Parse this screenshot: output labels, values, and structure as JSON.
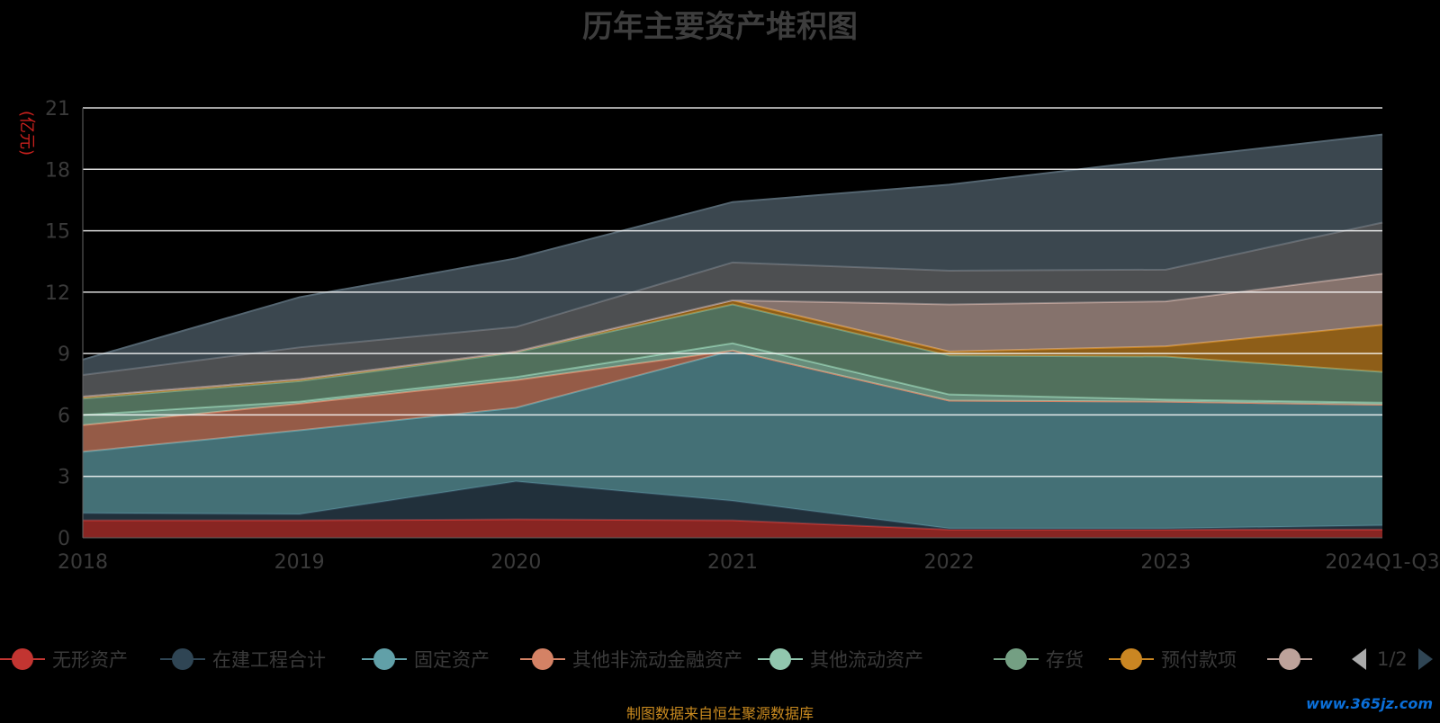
{
  "title": "历年主要资产堆积图",
  "footer_text": "制图数据来自恒生聚源数据库",
  "watermark": "www.365jz.com",
  "legend_pager": "1/2",
  "chart_data": {
    "type": "area",
    "stacked": true,
    "ylabel": "(亿元)",
    "ylim": [
      0,
      21
    ],
    "yticks": [
      0,
      3,
      6,
      9,
      12,
      15,
      18,
      21
    ],
    "grid": true,
    "legend_position": "bottom",
    "categories": [
      "2018",
      "2019",
      "2020",
      "2021",
      "2022",
      "2023",
      "2024Q1-Q3"
    ],
    "series": [
      {
        "name": "无形资产",
        "color": "#c23531",
        "values": [
          0.85,
          0.85,
          0.9,
          0.85,
          0.4,
          0.4,
          0.4
        ]
      },
      {
        "name": "在建工程合计",
        "color": "#2f4554",
        "values": [
          0.35,
          0.3,
          1.85,
          0.95,
          0.05,
          0.05,
          0.2
        ]
      },
      {
        "name": "固定资产",
        "color": "#61a0a8",
        "values": [
          3.0,
          4.1,
          3.6,
          7.35,
          6.25,
          6.2,
          5.9
        ]
      },
      {
        "name": "其他非流动金融资产",
        "color": "#d48265",
        "values": [
          1.3,
          1.3,
          1.35,
          0.0,
          0.0,
          0.0,
          0.0
        ]
      },
      {
        "name": "其他流动资产",
        "color": "#91c7ae",
        "values": [
          0.5,
          0.1,
          0.15,
          0.35,
          0.3,
          0.1,
          0.1
        ]
      },
      {
        "name": "存货",
        "color": "#749f83",
        "values": [
          0.8,
          1.0,
          1.2,
          1.9,
          1.9,
          2.1,
          1.5
        ]
      },
      {
        "name": "预付款项",
        "color": "#ca8622",
        "values": [
          0.1,
          0.1,
          0.05,
          0.2,
          0.2,
          0.5,
          2.3
        ]
      },
      {
        "name": "",
        "color": "#bda29a",
        "values": [
          0.0,
          0.0,
          0.0,
          0.0,
          2.3,
          2.2,
          2.5
        ]
      },
      {
        "name": "",
        "color": "#6e7074",
        "values": [
          1.05,
          1.55,
          1.2,
          1.85,
          1.65,
          1.55,
          2.5
        ]
      },
      {
        "name": "",
        "color": "#546570",
        "values": [
          0.75,
          2.45,
          3.35,
          2.95,
          4.2,
          5.4,
          4.3
        ]
      }
    ]
  }
}
